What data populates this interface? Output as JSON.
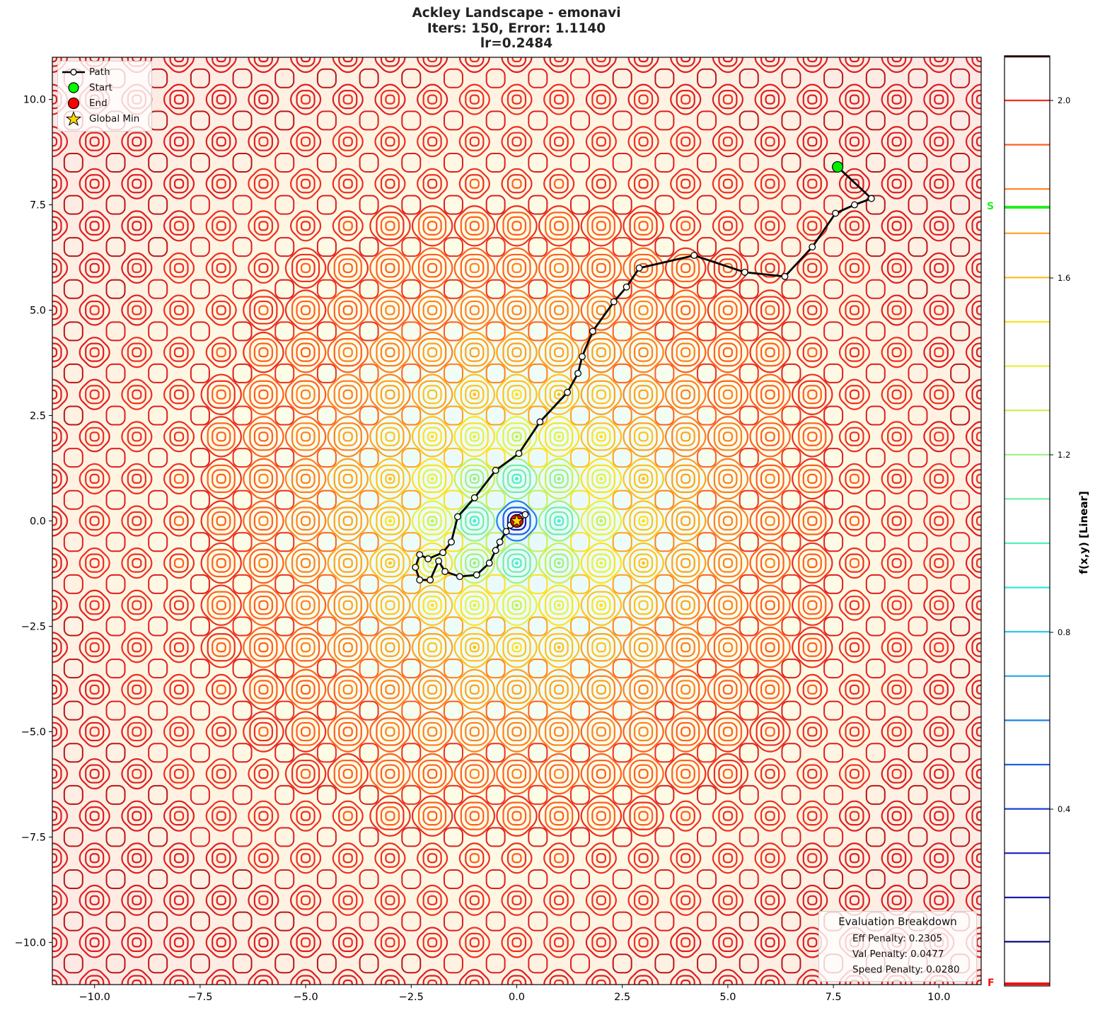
{
  "figure": {
    "title_line1": "Ackley Landscape - emonavi",
    "title_line2": "Iters: 150, Error: 1.1140",
    "title_line3": "lr=0.2484"
  },
  "legend": {
    "items": [
      {
        "label": "Path",
        "icon": "path-line-marker-icon"
      },
      {
        "label": "Start",
        "icon": "green-circle-icon",
        "color": "#00ff00"
      },
      {
        "label": "End",
        "icon": "red-circle-icon",
        "color": "#ff0000"
      },
      {
        "label": "Global Min",
        "icon": "yellow-star-icon",
        "color": "#ffd700"
      }
    ]
  },
  "evaluation": {
    "title": "Evaluation Breakdown",
    "lines": [
      "Eff Penalty: 0.2305",
      "Val Penalty: 0.0477",
      "Speed Penalty: 0.0280"
    ]
  },
  "colorbar": {
    "label": "f(x,y) [Linear]",
    "tick_labels": [
      "2.0",
      "1.6",
      "1.2",
      "0.8",
      "0.4"
    ],
    "start_marker": "S",
    "final_marker": "F",
    "start_color": "#22ee22",
    "final_color": "#ee1111"
  },
  "axes": {
    "x_tick_labels": [
      "−10.0",
      "−7.5",
      "−5.0",
      "−2.5",
      "0.0",
      "2.5",
      "5.0",
      "7.5",
      "10.0"
    ],
    "y_tick_labels": [
      "10.0",
      "7.5",
      "5.0",
      "2.5",
      "0.0",
      "−2.5",
      "−5.0",
      "−7.5",
      "−10.0"
    ]
  },
  "chart_data": {
    "type": "contour",
    "title": "Ackley Landscape - emonavi\nIters: 150, Error: 1.1140\nlr=0.2484",
    "xlabel": "",
    "ylabel": "",
    "xlim": [
      -11,
      11
    ],
    "ylim": [
      -11,
      11
    ],
    "x_ticks": [
      -10.0,
      -7.5,
      -5.0,
      -2.5,
      0.0,
      2.5,
      5.0,
      7.5,
      10.0
    ],
    "y_ticks": [
      -10.0,
      -7.5,
      -5.0,
      -2.5,
      0.0,
      2.5,
      5.0,
      7.5,
      10.0
    ],
    "function": "Ackley (linear scale colormap jet-like, log-ish compressed levels)",
    "colorbar": {
      "label": "f(x,y) [Linear]",
      "ticks": [
        0.4,
        0.8,
        1.2,
        1.6,
        2.0
      ],
      "range": [
        0.0,
        2.1
      ],
      "level_colors": [
        "#0a0a80",
        "#1010a8",
        "#1a1ac8",
        "#1e40d0",
        "#2060e0",
        "#2080e8",
        "#20a8f0",
        "#20c8f0",
        "#30e8e0",
        "#50f0c0",
        "#70f0a0",
        "#a0f080",
        "#c8f050",
        "#e8f040",
        "#ffe020",
        "#ffc020",
        "#ffa020",
        "#ff8020",
        "#ff6020",
        "#ee3020",
        "#dd2020",
        "#b81818",
        "#401010"
      ],
      "start_value_marker": {
        "label": "S",
        "approx_value": 1.74
      },
      "final_value_marker": {
        "label": "F",
        "approx_value": 0.0
      }
    },
    "path": {
      "label": "Path",
      "iterations": 150,
      "points": [
        [
          7.6,
          8.4
        ],
        [
          8.4,
          7.65
        ],
        [
          8.0,
          7.5
        ],
        [
          7.55,
          7.3
        ],
        [
          7.0,
          6.5
        ],
        [
          6.35,
          5.8
        ],
        [
          5.4,
          5.9
        ],
        [
          4.2,
          6.3
        ],
        [
          2.9,
          6.0
        ],
        [
          2.6,
          5.55
        ],
        [
          2.3,
          5.2
        ],
        [
          1.8,
          4.5
        ],
        [
          1.55,
          3.9
        ],
        [
          1.45,
          3.5
        ],
        [
          1.2,
          3.05
        ],
        [
          0.55,
          2.35
        ],
        [
          0.05,
          1.6
        ],
        [
          -0.5,
          1.2
        ],
        [
          -1.0,
          0.55
        ],
        [
          -1.4,
          0.1
        ],
        [
          -1.55,
          -0.5
        ],
        [
          -1.75,
          -0.75
        ],
        [
          -2.1,
          -0.9
        ],
        [
          -2.3,
          -0.8
        ],
        [
          -2.4,
          -1.1
        ],
        [
          -2.3,
          -1.4
        ],
        [
          -2.05,
          -1.4
        ],
        [
          -1.85,
          -0.95
        ],
        [
          -1.7,
          -1.2
        ],
        [
          -1.35,
          -1.32
        ],
        [
          -0.95,
          -1.28
        ],
        [
          -0.65,
          -1.0
        ],
        [
          -0.5,
          -0.7
        ],
        [
          -0.4,
          -0.5
        ],
        [
          -0.25,
          -0.25
        ],
        [
          -0.15,
          -0.1
        ],
        [
          -0.05,
          0.05
        ],
        [
          0.1,
          0.1
        ],
        [
          0.2,
          0.15
        ],
        [
          0.05,
          0.0
        ]
      ],
      "start": {
        "x": 7.6,
        "y": 8.4,
        "label": "Start"
      },
      "end": {
        "x": 0.0,
        "y": 0.0,
        "label": "End"
      },
      "final_error": 1.114,
      "lr": 0.2484
    },
    "global_min": {
      "x": 0.0,
      "y": 0.0,
      "label": "Global Min"
    },
    "annotations": {
      "evaluation_breakdown": {
        "Eff Penalty": 0.2305,
        "Val Penalty": 0.0477,
        "Speed Penalty": 0.028
      }
    },
    "legend_position": "upper left",
    "grid": false
  }
}
